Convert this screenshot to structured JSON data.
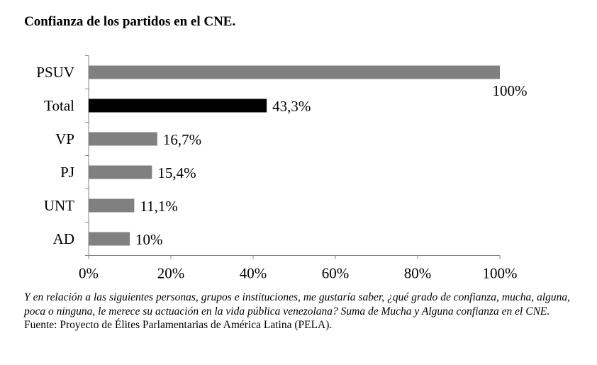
{
  "chart_data": {
    "type": "bar",
    "orientation": "horizontal",
    "title": "Confianza de los partidos en el CNE.",
    "categories": [
      "PSUV",
      "Total",
      "VP",
      "PJ",
      "UNT",
      "AD"
    ],
    "values": [
      100,
      43.3,
      16.7,
      15.4,
      11.1,
      10
    ],
    "data_labels": [
      "100%",
      "43,3%",
      "16,7%",
      "15,4%",
      "11,1%",
      "10%"
    ],
    "bar_colors": [
      "#808080",
      "#000000",
      "#808080",
      "#808080",
      "#808080",
      "#808080"
    ],
    "xlim": [
      0,
      100
    ],
    "xticks": [
      0,
      20,
      40,
      60,
      80,
      100
    ],
    "xtick_labels": [
      "0%",
      "20%",
      "40%",
      "60%",
      "80%",
      "100%"
    ],
    "xlabel": "",
    "ylabel": "",
    "grid": false,
    "legend": "none"
  },
  "notes": {
    "question": "Y en relación a las siguientes personas, grupos e instituciones, me gustaría saber, ¿qué grado de confianza, mucha, alguna, poca o ninguna, le merece su actuación en la vida pública venezolana? Suma de Mucha y Alguna confianza en el CNE.",
    "source": "Fuente: Proyecto de Élites Parlamentarias de América Latina (PELA)."
  }
}
